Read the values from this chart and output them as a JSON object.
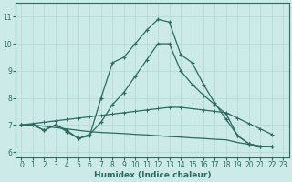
{
  "xlabel": "Humidex (Indice chaleur)",
  "bg_color": "#cceae8",
  "line_color": "#2a6b62",
  "grid_color": "#b0d8d4",
  "xlim": [
    -0.5,
    23.5
  ],
  "ylim": [
    5.8,
    11.5
  ],
  "xticks": [
    0,
    1,
    2,
    3,
    4,
    5,
    6,
    7,
    8,
    9,
    10,
    11,
    12,
    13,
    14,
    15,
    16,
    17,
    18,
    19,
    20,
    21,
    22,
    23
  ],
  "yticks": [
    6,
    7,
    8,
    9,
    10,
    11
  ],
  "series": [
    [
      7.0,
      7.0,
      6.8,
      7.0,
      6.8,
      6.5,
      6.6,
      8.0,
      9.3,
      9.5,
      10.0,
      10.5,
      10.9,
      10.8,
      9.6,
      9.3,
      8.5,
      7.8,
      7.2,
      6.6,
      6.3,
      6.2,
      6.2
    ],
    [
      7.0,
      7.0,
      6.8,
      7.0,
      6.75,
      6.5,
      6.65,
      7.1,
      7.75,
      8.2,
      8.8,
      9.4,
      10.0,
      10.0,
      9.0,
      8.5,
      8.1,
      7.75,
      7.4,
      6.6,
      6.3,
      6.2,
      6.2
    ],
    [
      7.0,
      7.05,
      7.1,
      7.15,
      7.2,
      7.25,
      7.3,
      7.35,
      7.4,
      7.45,
      7.5,
      7.55,
      7.6,
      7.65,
      7.65,
      7.6,
      7.55,
      7.5,
      7.45,
      7.25,
      7.05,
      6.85,
      6.65
    ],
    [
      7.0,
      7.0,
      6.95,
      6.9,
      6.85,
      6.8,
      6.75,
      6.72,
      6.7,
      6.68,
      6.65,
      6.63,
      6.6,
      6.57,
      6.55,
      6.52,
      6.5,
      6.47,
      6.45,
      6.35,
      6.28,
      6.22,
      6.2
    ]
  ],
  "markers": [
    [
      false,
      false,
      false,
      false,
      false,
      false,
      false,
      true,
      true,
      true,
      true,
      true,
      true,
      true,
      true,
      true,
      true,
      true,
      true,
      true,
      true,
      true,
      true
    ],
    [
      false,
      false,
      false,
      false,
      false,
      false,
      false,
      true,
      true,
      true,
      true,
      true,
      true,
      true,
      true,
      true,
      true,
      true,
      true,
      true,
      true,
      true,
      true
    ],
    [
      true,
      true,
      true,
      true,
      true,
      true,
      true,
      true,
      true,
      true,
      true,
      true,
      true,
      true,
      true,
      true,
      true,
      true,
      true,
      true,
      true,
      true,
      true
    ],
    [
      false,
      false,
      false,
      false,
      false,
      false,
      false,
      false,
      false,
      false,
      false,
      false,
      false,
      false,
      false,
      false,
      false,
      false,
      false,
      false,
      false,
      false,
      false
    ]
  ]
}
